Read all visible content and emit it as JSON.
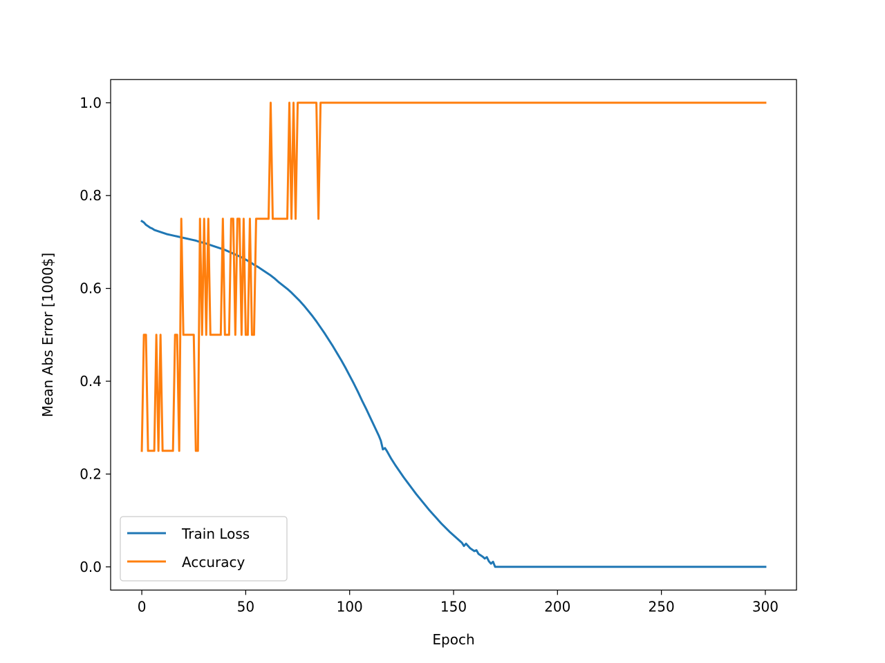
{
  "chart_data": {
    "type": "line",
    "title": "",
    "xlabel": "Epoch",
    "ylabel": "Mean Abs Error [1000$]",
    "xlim": [
      -15,
      315
    ],
    "ylim": [
      -0.05,
      1.05
    ],
    "xticks": [
      0,
      50,
      100,
      150,
      200,
      250,
      300
    ],
    "xtick_labels": [
      "0",
      "50",
      "100",
      "150",
      "200",
      "250",
      "300"
    ],
    "yticks": [
      0.0,
      0.2,
      0.4,
      0.6,
      0.8,
      1.0
    ],
    "ytick_labels": [
      "0.0",
      "0.2",
      "0.4",
      "0.6",
      "0.8",
      "1.0"
    ],
    "grid": false,
    "legend_position": "lower left",
    "series": [
      {
        "name": "Train Loss",
        "color": "#1f77b4",
        "points": [
          [
            0,
            0.745
          ],
          [
            1,
            0.742
          ],
          [
            2,
            0.737
          ],
          [
            3,
            0.734
          ],
          [
            4,
            0.731
          ],
          [
            5,
            0.729
          ],
          [
            6,
            0.726
          ],
          [
            8,
            0.723
          ],
          [
            10,
            0.72
          ],
          [
            12,
            0.717
          ],
          [
            14,
            0.715
          ],
          [
            16,
            0.713
          ],
          [
            18,
            0.711
          ],
          [
            20,
            0.709
          ],
          [
            22,
            0.707
          ],
          [
            24,
            0.705
          ],
          [
            26,
            0.703
          ],
          [
            28,
            0.7
          ],
          [
            30,
            0.698
          ],
          [
            32,
            0.695
          ],
          [
            34,
            0.692
          ],
          [
            36,
            0.689
          ],
          [
            38,
            0.686
          ],
          [
            40,
            0.683
          ],
          [
            42,
            0.679
          ],
          [
            44,
            0.675
          ],
          [
            46,
            0.671
          ],
          [
            48,
            0.667
          ],
          [
            50,
            0.662
          ],
          [
            52,
            0.657
          ],
          [
            54,
            0.651
          ],
          [
            56,
            0.646
          ],
          [
            58,
            0.64
          ],
          [
            60,
            0.634
          ],
          [
            62,
            0.628
          ],
          [
            64,
            0.621
          ],
          [
            66,
            0.613
          ],
          [
            68,
            0.606
          ],
          [
            70,
            0.599
          ],
          [
            72,
            0.591
          ],
          [
            74,
            0.582
          ],
          [
            76,
            0.573
          ],
          [
            78,
            0.563
          ],
          [
            80,
            0.552
          ],
          [
            82,
            0.541
          ],
          [
            84,
            0.529
          ],
          [
            86,
            0.516
          ],
          [
            88,
            0.503
          ],
          [
            90,
            0.489
          ],
          [
            92,
            0.475
          ],
          [
            94,
            0.46
          ],
          [
            96,
            0.445
          ],
          [
            98,
            0.429
          ],
          [
            100,
            0.412
          ],
          [
            102,
            0.395
          ],
          [
            104,
            0.377
          ],
          [
            106,
            0.358
          ],
          [
            108,
            0.34
          ],
          [
            110,
            0.321
          ],
          [
            112,
            0.302
          ],
          [
            114,
            0.283
          ],
          [
            115,
            0.272
          ],
          [
            116,
            0.253
          ],
          [
            117,
            0.256
          ],
          [
            118,
            0.249
          ],
          [
            120,
            0.233
          ],
          [
            122,
            0.219
          ],
          [
            124,
            0.206
          ],
          [
            126,
            0.193
          ],
          [
            128,
            0.181
          ],
          [
            130,
            0.169
          ],
          [
            132,
            0.157
          ],
          [
            134,
            0.146
          ],
          [
            136,
            0.135
          ],
          [
            138,
            0.124
          ],
          [
            140,
            0.114
          ],
          [
            142,
            0.104
          ],
          [
            144,
            0.094
          ],
          [
            146,
            0.085
          ],
          [
            148,
            0.076
          ],
          [
            150,
            0.068
          ],
          [
            152,
            0.06
          ],
          [
            154,
            0.052
          ],
          [
            155,
            0.045
          ],
          [
            156,
            0.05
          ],
          [
            158,
            0.04
          ],
          [
            160,
            0.034
          ],
          [
            161,
            0.036
          ],
          [
            162,
            0.028
          ],
          [
            164,
            0.022
          ],
          [
            165,
            0.018
          ],
          [
            166,
            0.021
          ],
          [
            167,
            0.012
          ],
          [
            168,
            0.007
          ],
          [
            169,
            0.011
          ],
          [
            170,
            0.0
          ],
          [
            180,
            0.0
          ],
          [
            200,
            0.0
          ],
          [
            250,
            0.0
          ],
          [
            300,
            0.0
          ]
        ]
      },
      {
        "name": "Accuracy",
        "color": "#ff7f0e",
        "points": [
          [
            0,
            0.25
          ],
          [
            1,
            0.5
          ],
          [
            2,
            0.5
          ],
          [
            3,
            0.25
          ],
          [
            4,
            0.25
          ],
          [
            5,
            0.25
          ],
          [
            6,
            0.25
          ],
          [
            7,
            0.5
          ],
          [
            8,
            0.25
          ],
          [
            9,
            0.5
          ],
          [
            10,
            0.25
          ],
          [
            11,
            0.25
          ],
          [
            12,
            0.25
          ],
          [
            13,
            0.25
          ],
          [
            14,
            0.25
          ],
          [
            15,
            0.25
          ],
          [
            16,
            0.5
          ],
          [
            17,
            0.5
          ],
          [
            18,
            0.25
          ],
          [
            19,
            0.75
          ],
          [
            20,
            0.5
          ],
          [
            21,
            0.5
          ],
          [
            22,
            0.5
          ],
          [
            23,
            0.5
          ],
          [
            24,
            0.5
          ],
          [
            25,
            0.5
          ],
          [
            26,
            0.25
          ],
          [
            27,
            0.25
          ],
          [
            28,
            0.75
          ],
          [
            29,
            0.5
          ],
          [
            30,
            0.75
          ],
          [
            31,
            0.5
          ],
          [
            32,
            0.75
          ],
          [
            33,
            0.5
          ],
          [
            34,
            0.5
          ],
          [
            35,
            0.5
          ],
          [
            36,
            0.5
          ],
          [
            37,
            0.5
          ],
          [
            38,
            0.5
          ],
          [
            39,
            0.75
          ],
          [
            40,
            0.5
          ],
          [
            41,
            0.5
          ],
          [
            42,
            0.5
          ],
          [
            43,
            0.75
          ],
          [
            44,
            0.75
          ],
          [
            45,
            0.5
          ],
          [
            46,
            0.75
          ],
          [
            47,
            0.75
          ],
          [
            48,
            0.5
          ],
          [
            49,
            0.75
          ],
          [
            50,
            0.5
          ],
          [
            51,
            0.5
          ],
          [
            52,
            0.75
          ],
          [
            53,
            0.5
          ],
          [
            54,
            0.5
          ],
          [
            55,
            0.75
          ],
          [
            56,
            0.75
          ],
          [
            57,
            0.75
          ],
          [
            58,
            0.75
          ],
          [
            59,
            0.75
          ],
          [
            60,
            0.75
          ],
          [
            61,
            0.75
          ],
          [
            62,
            1.0
          ],
          [
            63,
            0.75
          ],
          [
            64,
            0.75
          ],
          [
            65,
            0.75
          ],
          [
            66,
            0.75
          ],
          [
            67,
            0.75
          ],
          [
            68,
            0.75
          ],
          [
            69,
            0.75
          ],
          [
            70,
            0.75
          ],
          [
            71,
            1.0
          ],
          [
            72,
            0.75
          ],
          [
            73,
            1.0
          ],
          [
            74,
            0.75
          ],
          [
            75,
            1.0
          ],
          [
            76,
            1.0
          ],
          [
            77,
            1.0
          ],
          [
            78,
            1.0
          ],
          [
            79,
            1.0
          ],
          [
            80,
            1.0
          ],
          [
            81,
            1.0
          ],
          [
            82,
            1.0
          ],
          [
            83,
            1.0
          ],
          [
            84,
            1.0
          ],
          [
            85,
            0.75
          ],
          [
            86,
            1.0
          ],
          [
            87,
            1.0
          ],
          [
            100,
            1.0
          ],
          [
            150,
            1.0
          ],
          [
            200,
            1.0
          ],
          [
            250,
            1.0
          ],
          [
            300,
            1.0
          ]
        ]
      }
    ]
  }
}
